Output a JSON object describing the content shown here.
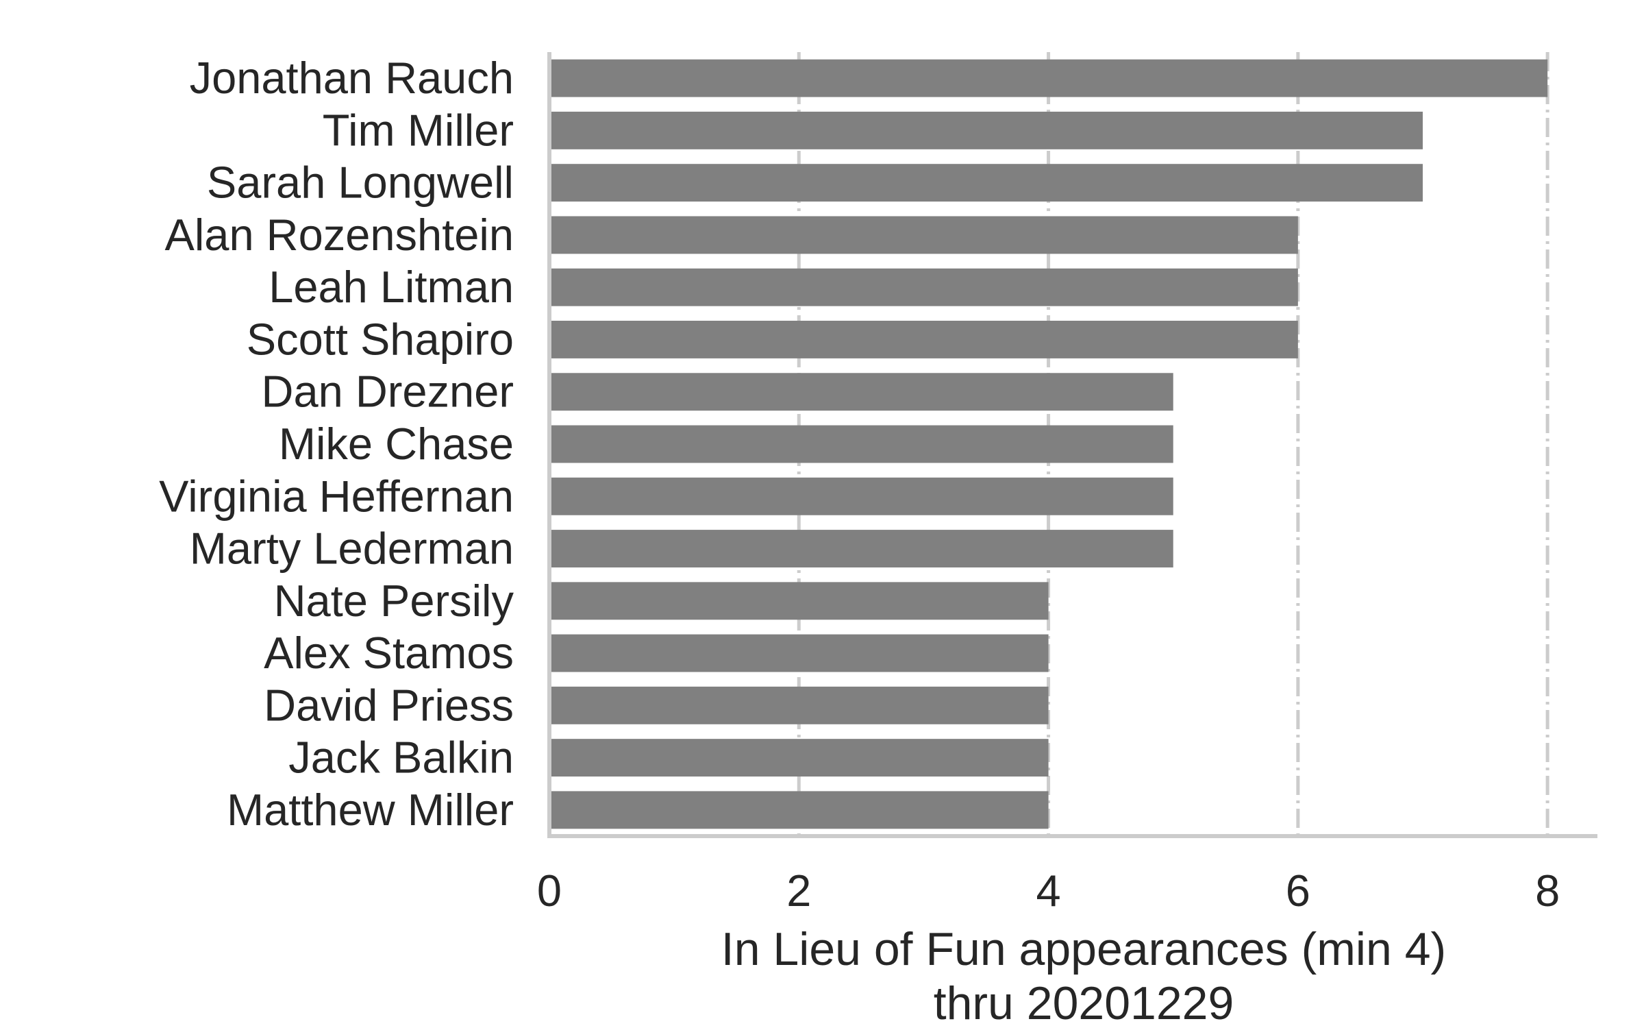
{
  "chart_data": {
    "type": "bar",
    "orientation": "horizontal",
    "categories": [
      "Jonathan Rauch",
      "Tim Miller",
      "Sarah Longwell",
      "Alan Rozenshtein",
      "Leah Litman",
      "Scott Shapiro",
      "Dan Drezner",
      "Mike Chase",
      "Virginia Heffernan",
      "Marty Lederman",
      "Nate Persily",
      "Alex Stamos",
      "David Priess",
      "Jack Balkin",
      "Matthew Miller"
    ],
    "values": [
      8,
      7,
      7,
      6,
      6,
      6,
      5,
      5,
      5,
      5,
      4,
      4,
      4,
      4,
      4
    ],
    "xlabel_line1": "In Lieu of Fun appearances (min 4)",
    "xlabel_line2": "thru 20201229",
    "ylabel": "",
    "title": "",
    "xlim": [
      0,
      8.4
    ],
    "xticks": [
      "0",
      "2",
      "4",
      "6",
      "8"
    ],
    "grid": "vertical",
    "bar_color": "#808080",
    "grid_color": "#cccccc",
    "text_color": "#262626"
  }
}
